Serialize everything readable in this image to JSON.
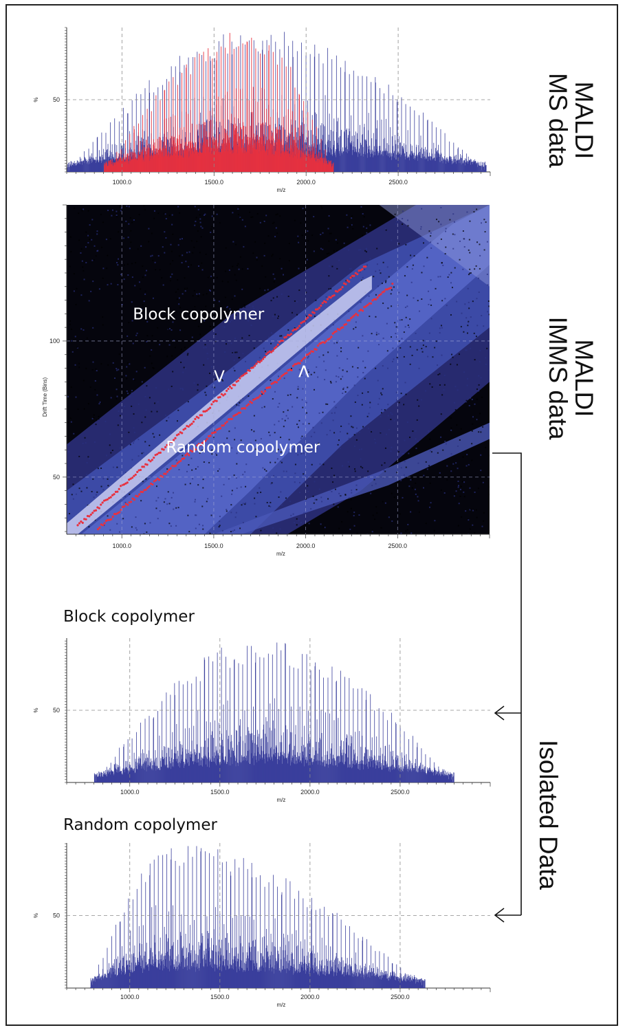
{
  "side_labels": {
    "ms": [
      "MALDI",
      "MS data"
    ],
    "imms": [
      "MALDI",
      "IMMS data"
    ],
    "isolated": "Isolated Data"
  },
  "colors": {
    "blue_series": "#3a3f9c",
    "red_series": "#e8313f",
    "imms_background": "#05050d",
    "imms_band": "#5566c8"
  },
  "chart_data": [
    {
      "id": "maldi-ms",
      "type": "bar",
      "xlabel": "m/z",
      "ylabel": "%",
      "x_ticks": [
        "1000.0",
        "1500.0",
        "2000.0",
        "2500.0"
      ],
      "y_ticks": [
        "50"
      ],
      "xlim": [
        700,
        3000
      ],
      "ylim": [
        0,
        100
      ],
      "grid": true,
      "series": [
        {
          "color": "blue",
          "peak_mz": 1720,
          "start_mz": 700,
          "end_mz": 2980,
          "max_percent": 100
        },
        {
          "color": "red",
          "peak_mz": 1700,
          "start_mz": 900,
          "end_mz": 2150,
          "max_percent": 100
        }
      ]
    },
    {
      "id": "maldi-imms",
      "type": "heatmap",
      "xlabel": "m/z",
      "ylabel": "Drift Time (Bins)",
      "x_ticks": [
        "1000.0",
        "1500.0",
        "2000.0",
        "2500.0"
      ],
      "y_ticks": [
        "50",
        "100"
      ],
      "xlim": [
        700,
        3000
      ],
      "ylim": [
        29,
        150
      ],
      "grid": true,
      "annotations": [
        {
          "text": "Block copolymer",
          "mz": 1060,
          "drift": 108
        },
        {
          "text": "Random copolymer",
          "mz": 1240,
          "drift": 59
        },
        {
          "text": "V",
          "mz": 1530,
          "drift": 85
        },
        {
          "text": "V",
          "mz": 1990,
          "drift": 87,
          "rotated": true
        }
      ]
    },
    {
      "id": "block-copolymer",
      "type": "bar",
      "title": "Block copolymer",
      "xlabel": "m/z",
      "ylabel": "%",
      "x_ticks": [
        "1000.0",
        "1500.0",
        "2000.0",
        "2500.0"
      ],
      "y_ticks": [
        "50"
      ],
      "xlim": [
        650,
        3000
      ],
      "ylim": [
        0,
        100
      ],
      "grid": true,
      "series": [
        {
          "color": "blue",
          "peak_mz": 1720,
          "start_mz": 800,
          "end_mz": 2800,
          "max_percent": 100
        }
      ]
    },
    {
      "id": "random-copolymer",
      "type": "bar",
      "title": "Random copolymer",
      "xlabel": "m/z",
      "ylabel": "%",
      "x_ticks": [
        "1000.0",
        "1500.0",
        "2000.0",
        "2500.0"
      ],
      "y_ticks": [
        "50"
      ],
      "xlim": [
        650,
        3000
      ],
      "ylim": [
        0,
        100
      ],
      "grid": true,
      "series": [
        {
          "color": "blue",
          "peak_mz": 1230,
          "start_mz": 780,
          "end_mz": 2640,
          "max_percent": 100
        }
      ]
    }
  ]
}
